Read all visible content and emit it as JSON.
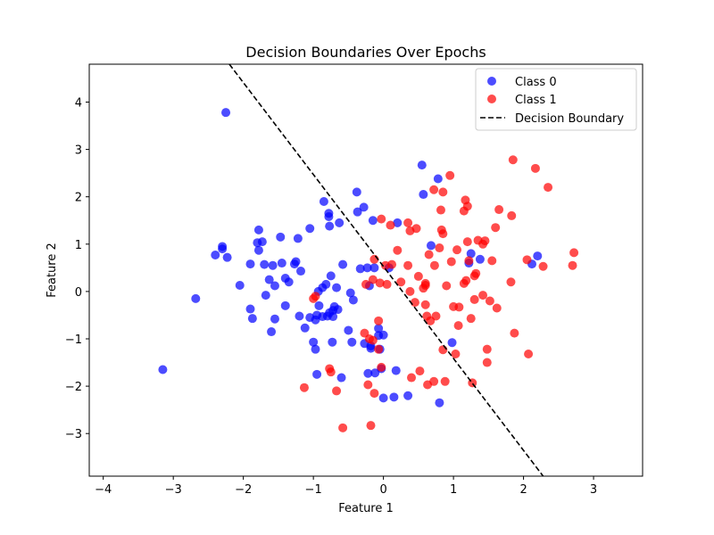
{
  "chart_data": {
    "type": "scatter",
    "title": "Decision Boundaries Over Epochs",
    "xlabel": "Feature 1",
    "ylabel": "Feature 2",
    "xlim": [
      -4.2,
      3.7
    ],
    "ylim": [
      -3.9,
      4.8
    ],
    "xticks": [
      -4,
      -3,
      -2,
      -1,
      0,
      1,
      2,
      3
    ],
    "yticks": [
      -3,
      -2,
      -1,
      0,
      1,
      2,
      3,
      4
    ],
    "grid": false,
    "legend_position": "top-right",
    "series": [
      {
        "name": "Class 0",
        "color": "#0000ff",
        "points": [
          [
            -2.25,
            3.78
          ],
          [
            -3.15,
            -1.65
          ],
          [
            -2.68,
            -0.15
          ],
          [
            -2.4,
            0.77
          ],
          [
            -2.3,
            0.95
          ],
          [
            -2.3,
            0.9
          ],
          [
            -2.23,
            0.72
          ],
          [
            -2.05,
            0.13
          ],
          [
            -1.9,
            0.58
          ],
          [
            -1.9,
            -0.37
          ],
          [
            -1.87,
            -0.57
          ],
          [
            -1.8,
            1.03
          ],
          [
            -1.78,
            1.3
          ],
          [
            -1.78,
            0.87
          ],
          [
            -1.73,
            1.05
          ],
          [
            -1.7,
            0.57
          ],
          [
            -1.68,
            -0.08
          ],
          [
            -1.63,
            0.25
          ],
          [
            -1.6,
            -0.85
          ],
          [
            -1.58,
            0.55
          ],
          [
            -1.55,
            0.12
          ],
          [
            -1.55,
            -0.58
          ],
          [
            -1.47,
            1.15
          ],
          [
            -1.45,
            0.6
          ],
          [
            -1.4,
            0.28
          ],
          [
            -1.4,
            -0.3
          ],
          [
            -1.35,
            0.2
          ],
          [
            -1.27,
            0.58
          ],
          [
            -1.25,
            0.63
          ],
          [
            -1.22,
            1.12
          ],
          [
            -1.2,
            -0.52
          ],
          [
            -1.18,
            0.43
          ],
          [
            -1.12,
            -0.77
          ],
          [
            -1.05,
            1.33
          ],
          [
            -1.05,
            -0.55
          ],
          [
            -1.0,
            -1.07
          ],
          [
            -0.97,
            -1.22
          ],
          [
            -0.97,
            -0.6
          ],
          [
            -0.95,
            -0.5
          ],
          [
            -0.95,
            -1.75
          ],
          [
            -0.93,
            0.0
          ],
          [
            -0.92,
            -0.3
          ],
          [
            -0.87,
            0.08
          ],
          [
            -0.87,
            -0.53
          ],
          [
            -0.85,
            1.9
          ],
          [
            -0.82,
            0.15
          ],
          [
            -0.8,
            -0.52
          ],
          [
            -0.78,
            1.65
          ],
          [
            -0.78,
            1.58
          ],
          [
            -0.77,
            1.38
          ],
          [
            -0.77,
            -0.45
          ],
          [
            -0.75,
            0.33
          ],
          [
            -0.73,
            -1.07
          ],
          [
            -0.72,
            -0.53
          ],
          [
            -0.72,
            -0.4
          ],
          [
            -0.7,
            -0.32
          ],
          [
            -0.67,
            0.08
          ],
          [
            -0.65,
            -0.38
          ],
          [
            -0.63,
            1.45
          ],
          [
            -0.6,
            -1.82
          ],
          [
            -0.58,
            0.57
          ],
          [
            -0.5,
            -0.82
          ],
          [
            -0.47,
            -0.03
          ],
          [
            -0.45,
            -1.07
          ],
          [
            -0.43,
            -0.18
          ],
          [
            -0.38,
            2.1
          ],
          [
            -0.37,
            1.68
          ],
          [
            -0.33,
            0.48
          ],
          [
            -0.28,
            1.78
          ],
          [
            -0.27,
            -1.1
          ],
          [
            -0.23,
            0.5
          ],
          [
            -0.22,
            -1.73
          ],
          [
            -0.2,
            0.12
          ],
          [
            -0.18,
            -1.2
          ],
          [
            -0.18,
            -1.15
          ],
          [
            -0.15,
            1.5
          ],
          [
            -0.13,
            0.5
          ],
          [
            -0.12,
            -1.72
          ],
          [
            -0.07,
            -0.93
          ],
          [
            -0.07,
            -0.78
          ],
          [
            -0.05,
            -1.22
          ],
          [
            -0.03,
            -1.63
          ],
          [
            0.0,
            -0.92
          ],
          [
            0.0,
            -2.25
          ],
          [
            0.08,
            0.5
          ],
          [
            0.15,
            -2.23
          ],
          [
            0.18,
            -1.67
          ],
          [
            0.2,
            1.45
          ],
          [
            0.35,
            -2.2
          ],
          [
            0.55,
            2.67
          ],
          [
            0.57,
            2.05
          ],
          [
            0.68,
            0.97
          ],
          [
            0.78,
            2.38
          ],
          [
            0.8,
            -2.35
          ],
          [
            0.98,
            -1.08
          ],
          [
            1.22,
            0.6
          ],
          [
            1.25,
            0.8
          ],
          [
            1.38,
            0.68
          ],
          [
            2.12,
            0.58
          ],
          [
            2.2,
            0.75
          ]
        ]
      },
      {
        "name": "Class 1",
        "color": "#ff0000",
        "points": [
          [
            -1.13,
            -2.03
          ],
          [
            -1.0,
            -0.15
          ],
          [
            -0.97,
            -0.1
          ],
          [
            -0.77,
            -1.63
          ],
          [
            -0.75,
            -1.7
          ],
          [
            -0.67,
            -2.1
          ],
          [
            -0.58,
            -2.88
          ],
          [
            -0.27,
            -0.88
          ],
          [
            -0.25,
            0.15
          ],
          [
            -0.22,
            -1.97
          ],
          [
            -0.2,
            -1.0
          ],
          [
            -0.18,
            -2.83
          ],
          [
            -0.15,
            -1.03
          ],
          [
            -0.15,
            0.25
          ],
          [
            -0.13,
            0.68
          ],
          [
            -0.13,
            -2.15
          ],
          [
            -0.07,
            -0.62
          ],
          [
            -0.07,
            -1.22
          ],
          [
            -0.05,
            0.18
          ],
          [
            -0.03,
            -1.6
          ],
          [
            -0.03,
            1.53
          ],
          [
            0.03,
            0.55
          ],
          [
            0.05,
            0.15
          ],
          [
            0.1,
            1.4
          ],
          [
            0.12,
            0.57
          ],
          [
            0.2,
            0.87
          ],
          [
            0.25,
            0.2
          ],
          [
            0.35,
            0.55
          ],
          [
            0.35,
            1.45
          ],
          [
            0.38,
            1.28
          ],
          [
            0.38,
            0.0
          ],
          [
            0.4,
            -1.82
          ],
          [
            0.45,
            -0.23
          ],
          [
            0.47,
            1.33
          ],
          [
            0.5,
            0.32
          ],
          [
            0.52,
            -1.68
          ],
          [
            0.57,
            0.07
          ],
          [
            0.6,
            0.13
          ],
          [
            0.6,
            -0.28
          ],
          [
            0.6,
            0.17
          ],
          [
            0.62,
            -0.52
          ],
          [
            0.63,
            -1.97
          ],
          [
            0.65,
            0.78
          ],
          [
            0.67,
            -0.62
          ],
          [
            0.72,
            2.15
          ],
          [
            0.72,
            -1.9
          ],
          [
            0.73,
            0.55
          ],
          [
            0.75,
            -0.52
          ],
          [
            0.8,
            0.92
          ],
          [
            0.82,
            1.72
          ],
          [
            0.83,
            1.3
          ],
          [
            0.85,
            1.22
          ],
          [
            0.85,
            2.1
          ],
          [
            0.85,
            -1.23
          ],
          [
            0.88,
            -1.9
          ],
          [
            0.9,
            0.12
          ],
          [
            0.95,
            2.45
          ],
          [
            0.97,
            0.63
          ],
          [
            1.0,
            -0.32
          ],
          [
            1.03,
            -1.32
          ],
          [
            1.05,
            0.88
          ],
          [
            1.07,
            -0.72
          ],
          [
            1.08,
            -0.33
          ],
          [
            1.15,
            1.7
          ],
          [
            1.15,
            0.17
          ],
          [
            1.17,
            1.93
          ],
          [
            1.18,
            0.23
          ],
          [
            1.2,
            1.8
          ],
          [
            1.2,
            1.05
          ],
          [
            1.22,
            0.65
          ],
          [
            1.25,
            -0.57
          ],
          [
            1.27,
            -1.93
          ],
          [
            1.3,
            -0.17
          ],
          [
            1.3,
            0.33
          ],
          [
            1.32,
            0.38
          ],
          [
            1.35,
            1.08
          ],
          [
            1.42,
            -0.08
          ],
          [
            1.42,
            1.0
          ],
          [
            1.45,
            1.07
          ],
          [
            1.48,
            -1.22
          ],
          [
            1.48,
            -1.5
          ],
          [
            1.52,
            -0.2
          ],
          [
            1.55,
            0.65
          ],
          [
            1.6,
            1.35
          ],
          [
            1.62,
            -0.35
          ],
          [
            1.65,
            1.73
          ],
          [
            1.82,
            0.2
          ],
          [
            1.83,
            1.6
          ],
          [
            1.85,
            2.78
          ],
          [
            1.87,
            -0.88
          ],
          [
            2.05,
            0.67
          ],
          [
            2.07,
            -1.32
          ],
          [
            2.17,
            2.6
          ],
          [
            2.28,
            0.53
          ],
          [
            2.35,
            2.2
          ],
          [
            2.7,
            0.55
          ],
          [
            2.72,
            0.82
          ]
        ]
      },
      {
        "name": "Decision Boundary",
        "color": "#000000",
        "line": [
          [
            -2.2,
            4.8
          ],
          [
            2.28,
            -3.9
          ]
        ]
      }
    ]
  }
}
